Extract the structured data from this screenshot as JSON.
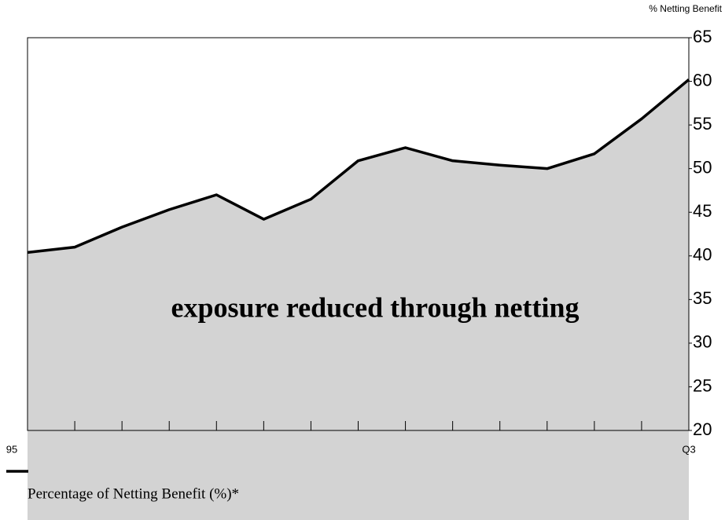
{
  "chart_data": {
    "type": "area",
    "y_axis_label": "% Netting Benefit",
    "annotation": "exposure reduced through netting",
    "categories": [
      "95",
      null,
      null,
      null,
      null,
      null,
      null,
      null,
      null,
      null,
      null,
      null,
      null,
      null,
      "Q3"
    ],
    "series": [
      {
        "name": "Percentage of Netting Benefit (%)*",
        "color": "#000000",
        "fill": "#d3d3d3",
        "values": [
          40.4,
          41.0,
          43.3,
          45.3,
          47.0,
          44.2,
          46.5,
          50.9,
          52.4,
          50.9,
          50.4,
          50.0,
          51.7,
          55.7,
          60.2
        ]
      }
    ],
    "ylim": [
      20,
      65
    ],
    "yticks": [
      20,
      25,
      30,
      35,
      40,
      45,
      50,
      55,
      60,
      65
    ]
  }
}
